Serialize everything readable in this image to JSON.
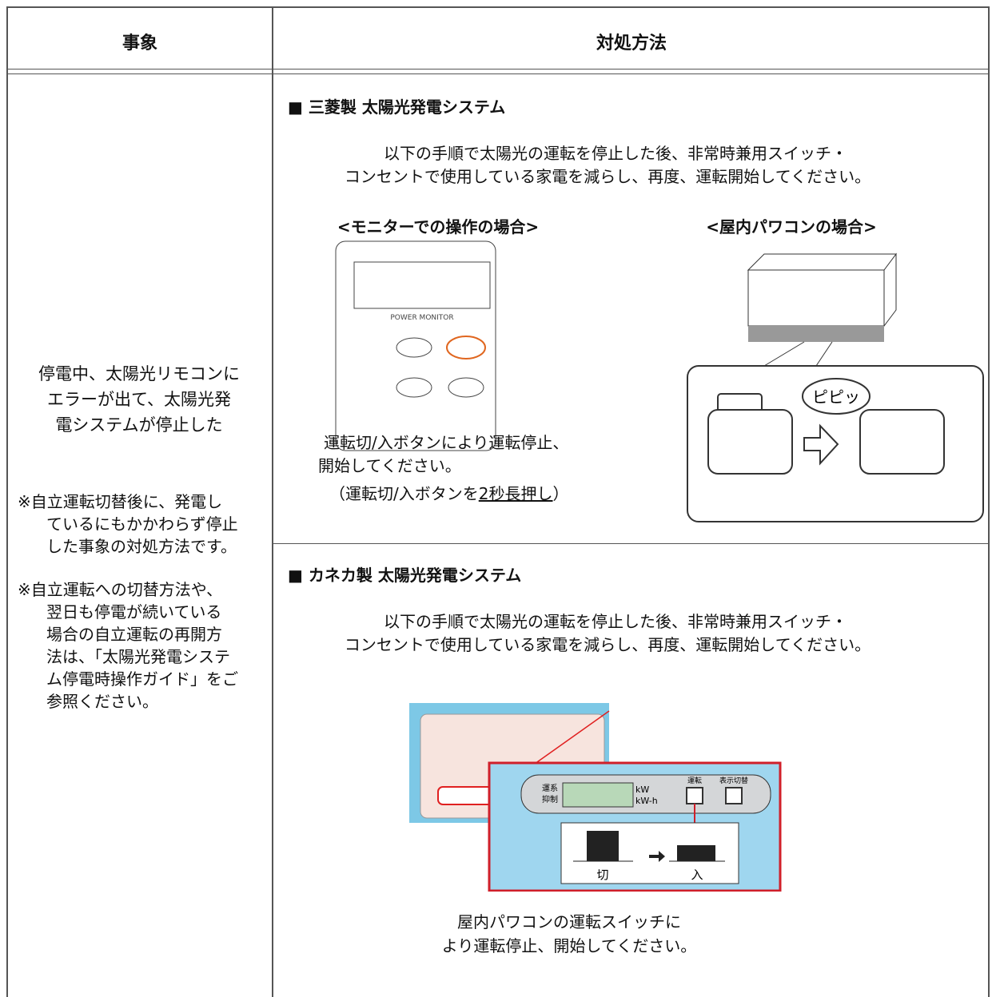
{
  "header": {
    "col1": "事象",
    "col2": "対処方法"
  },
  "event": {
    "lines": [
      "停電中、太陽光リモコンに",
      "エラーが出て、太陽光発",
      "電システムが停止した"
    ],
    "notes": [
      [
        "※自立運転切替後に、発電し",
        "ているにもかかわらず停止",
        "した事象の対処方法です。"
      ],
      [
        "※自立運転への切替方法や、",
        "翌日も停電が続いている",
        "場合の自立運転の再開方",
        "法は、「太陽光発電システ",
        "ム停電時操作ガイド」をご",
        "参照ください。"
      ]
    ]
  },
  "sections": [
    {
      "title": "■ 三菱製 太陽光発電システム",
      "intro": [
        "以下の手順で太陽光の運転を停止した後、非常時兼用スイッチ・",
        "コンセントで使用している家電を減らし、再度、運転開始してください。"
      ],
      "monitor": {
        "heading": "<モニターでの操作の場合>",
        "panel": "POWER MONITOR",
        "caption": [
          "運転切/入ボタンにより運転停止、",
          "開始してください。"
        ],
        "note": [
          "（運転切/入ボタンを",
          "2秒長押し",
          "）"
        ]
      },
      "indoor": {
        "heading": "<屋内パワコンの場合>",
        "sound": "ピピッ"
      }
    },
    {
      "title": "■ カネカ製 太陽光発電システム",
      "intro": [
        "以下の手順で太陽光の運転を停止した後、非常時兼用スイッチ・",
        "コンセントで使用している家電を減らし、再度、運転開始してください。"
      ],
      "panel": {
        "left": [
          "運系",
          "抑制"
        ],
        "units": [
          "kW",
          "kW-h"
        ],
        "run": "運転",
        "display": "表示切替",
        "off": "切",
        "on": "入"
      },
      "caption": [
        "屋内パワコンの運転スイッチに",
        "より運転停止、開始してください。"
      ]
    }
  ]
}
